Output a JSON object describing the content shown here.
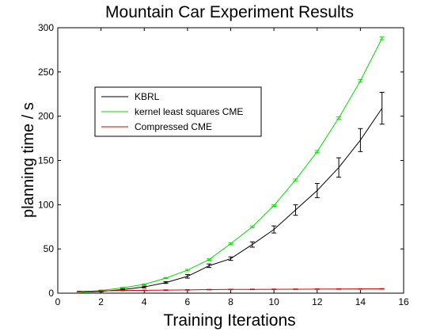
{
  "chart_data": {
    "type": "line",
    "title": "Mountain Car Experiment Results",
    "xlabel": "Training Iterations",
    "ylabel": "planning time / s",
    "xlim": [
      0,
      16
    ],
    "ylim": [
      0,
      300
    ],
    "xticks": [
      0,
      2,
      4,
      6,
      8,
      10,
      12,
      14,
      16
    ],
    "yticks": [
      0,
      50,
      100,
      150,
      200,
      250,
      300
    ],
    "grid": false,
    "legend_position": "upper-left",
    "x": [
      1,
      2,
      3,
      4,
      5,
      6,
      7,
      8,
      9,
      10,
      11,
      12,
      13,
      14,
      15
    ],
    "series": [
      {
        "name": "KBRL",
        "color": "#000000",
        "values": [
          1,
          2,
          4,
          7,
          12,
          19,
          31,
          39,
          55,
          72,
          94,
          116,
          142,
          173,
          209
        ],
        "errors": [
          0.5,
          0.5,
          0.8,
          1,
          1,
          2,
          2,
          2,
          3,
          4,
          6,
          8,
          11,
          13,
          18
        ]
      },
      {
        "name": "kernel least squares CME",
        "color": "#00dd00",
        "values": [
          1,
          3,
          6,
          10,
          17,
          26,
          38,
          56,
          75,
          99,
          128,
          160,
          198,
          240,
          288
        ],
        "errors": [
          0.5,
          0.5,
          0.5,
          0.5,
          0.5,
          0.8,
          0.8,
          1,
          1,
          1,
          1,
          1.2,
          1.2,
          1.5,
          1.5
        ]
      },
      {
        "name": "Compressed CME",
        "color": "#dd0000",
        "values": [
          2,
          2.5,
          3,
          3.2,
          3.5,
          3.7,
          4,
          4.2,
          4.3,
          4.4,
          4.5,
          4.6,
          4.7,
          4.8,
          4.9
        ],
        "errors": [
          0.3,
          0.3,
          0.3,
          0.3,
          0.3,
          0.3,
          0.3,
          0.3,
          0.3,
          0.3,
          0.3,
          0.3,
          0.3,
          0.3,
          0.3
        ]
      }
    ]
  }
}
